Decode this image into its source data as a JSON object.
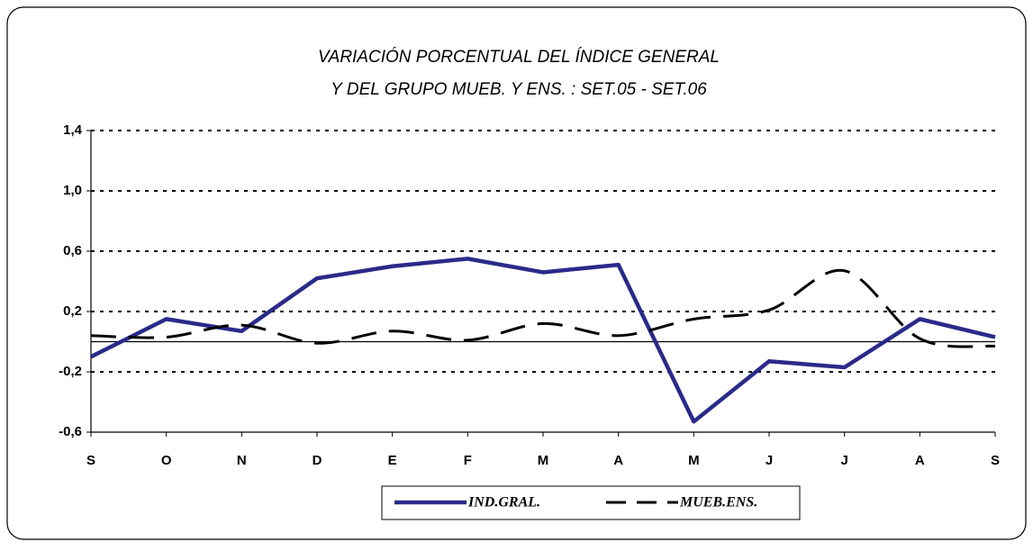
{
  "chart_data": {
    "type": "line",
    "title": "VARIACIÓN PORCENTUAL DEL ÍNDICE GENERAL",
    "subtitle": "Y DEL GRUPO MUEB. Y ENS. : SET.05 - SET.06",
    "categories": [
      "S",
      "O",
      "N",
      "D",
      "E",
      "F",
      "M",
      "A",
      "M",
      "J",
      "J",
      "A",
      "S"
    ],
    "series": [
      {
        "name": "IND.GRAL.",
        "color": "#2a2a8a",
        "style": "solid",
        "values": [
          -0.1,
          0.15,
          0.07,
          0.42,
          0.5,
          0.55,
          0.46,
          0.51,
          -0.53,
          -0.13,
          -0.17,
          0.15,
          0.03
        ]
      },
      {
        "name": "MUEB.ENS.",
        "color": "#000000",
        "style": "dashed",
        "values": [
          0.04,
          0.03,
          0.11,
          -0.01,
          0.07,
          0.01,
          0.12,
          0.04,
          0.15,
          0.21,
          0.47,
          0.02,
          -0.03
        ]
      }
    ],
    "ylim": [
      -0.6,
      1.4
    ],
    "yticks": [
      {
        "value": -0.6,
        "label": "-0,6"
      },
      {
        "value": -0.2,
        "label": "-0,2"
      },
      {
        "value": 0.2,
        "label": "0,2"
      },
      {
        "value": 0.6,
        "label": "0,6"
      },
      {
        "value": 1.0,
        "label": "1,0"
      },
      {
        "value": 1.4,
        "label": "1,4"
      }
    ],
    "grid": true,
    "legend": "bottom"
  }
}
